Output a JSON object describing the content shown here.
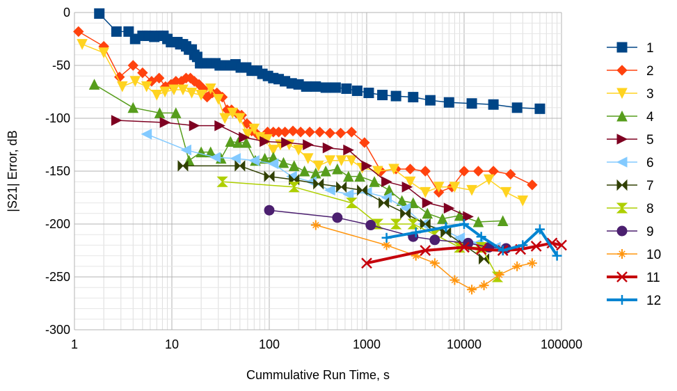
{
  "chart_data": {
    "type": "scatter",
    "title": "",
    "xlabel": "Cummulative Run Time, s",
    "ylabel": "|S21| Error, dB",
    "xscale": "log",
    "xlim": [
      1,
      100000
    ],
    "ylim": [
      -300,
      0
    ],
    "x_ticks": [
      1,
      10,
      100,
      1000,
      10000,
      100000
    ],
    "x_tick_labels": [
      "1",
      "10",
      "100",
      "1000",
      "10000",
      "100000"
    ],
    "y_ticks": [
      0,
      -50,
      -100,
      -150,
      -200,
      -250,
      -300
    ],
    "y_tick_labels": [
      "0",
      "-50",
      "-100",
      "-150",
      "-200",
      "-250",
      "-300"
    ],
    "grid": true,
    "legend_position": "right",
    "series": [
      {
        "name": "1",
        "color": "#004586",
        "marker": "square",
        "line_width": 1.5,
        "x": [
          1.8,
          2.7,
          3.6,
          4.2,
          5.0,
          5.8,
          6.6,
          7.4,
          8.2,
          9.0,
          9.8,
          10.6,
          11.4,
          12.2,
          13.0,
          14.0,
          15.0,
          16.0,
          17.0,
          18.2,
          19.5,
          21,
          23,
          25,
          28,
          31,
          35,
          40,
          45,
          51,
          58,
          66,
          75,
          85,
          97,
          110,
          125,
          145,
          170,
          200,
          240,
          300,
          380,
          480,
          620,
          800,
          1050,
          1450,
          2000,
          3000,
          4500,
          7000,
          12000,
          20000,
          35000,
          60000
        ],
        "y": [
          -1,
          -18,
          -18,
          -25,
          -22,
          -22,
          -23,
          -22,
          -22,
          -25,
          -28,
          -28,
          -28,
          -30,
          -30,
          -32,
          -35,
          -35,
          -40,
          -42,
          -48,
          -48,
          -48,
          -48,
          -48,
          -50,
          -50,
          -50,
          -49,
          -52,
          -52,
          -55,
          -55,
          -58,
          -60,
          -62,
          -63,
          -65,
          -67,
          -68,
          -70,
          -70,
          -71,
          -71,
          -72,
          -74,
          -76,
          -78,
          -79,
          -80,
          -83,
          -85,
          -86,
          -87,
          -90,
          -91
        ]
      },
      {
        "name": "2",
        "color": "#ff420e",
        "marker": "diamond",
        "line_width": 1.5,
        "x": [
          1.1,
          2.0,
          2.9,
          4.0,
          5.0,
          6.2,
          7.4,
          8.6,
          9.8,
          11,
          12.5,
          14,
          15.5,
          17,
          19,
          21,
          23,
          26,
          29,
          33,
          37,
          41,
          46,
          52,
          59,
          66,
          75,
          85,
          96,
          110,
          125,
          145,
          175,
          210,
          260,
          330,
          420,
          540,
          700,
          950,
          1400,
          2000,
          2800,
          4000,
          5500,
          7500,
          10000,
          14000,
          20000,
          30000,
          50000
        ],
        "y": [
          -18,
          -32,
          -61,
          -50,
          -57,
          -65,
          -62,
          -70,
          -68,
          -65,
          -65,
          -62,
          -62,
          -65,
          -68,
          -72,
          -80,
          -76,
          -76,
          -80,
          -92,
          -92,
          -95,
          -97,
          -105,
          -112,
          -115,
          -118,
          -113,
          -113,
          -113,
          -113,
          -112,
          -113,
          -113,
          -113,
          -114,
          -114,
          -113,
          -123,
          -150,
          -148,
          -148,
          -150,
          -170,
          -165,
          -150,
          -150,
          -150,
          -153,
          -163
        ]
      },
      {
        "name": "3",
        "color": "#ffd320",
        "marker": "triangle-down",
        "line_width": 1.5,
        "x": [
          1.2,
          2.0,
          3.1,
          4.2,
          5.5,
          7.0,
          8.5,
          10.5,
          13,
          16,
          20,
          25,
          30,
          35,
          42,
          50,
          60,
          70,
          80,
          95,
          110,
          130,
          160,
          200,
          250,
          320,
          420,
          550,
          700,
          900,
          1300,
          1900,
          2800,
          4000,
          5500,
          8000,
          12000,
          18000,
          27000,
          40000
        ],
        "y": [
          -30,
          -38,
          -70,
          -65,
          -70,
          -78,
          -75,
          -73,
          -73,
          -76,
          -78,
          -72,
          -82,
          -100,
          -95,
          -100,
          -115,
          -110,
          -118,
          -120,
          -130,
          -125,
          -125,
          -130,
          -138,
          -145,
          -140,
          -140,
          -140,
          -147,
          -150,
          -148,
          -160,
          -170,
          -165,
          -165,
          -168,
          -158,
          -170,
          -178
        ]
      },
      {
        "name": "4",
        "color": "#579d1c",
        "marker": "triangle-up",
        "line_width": 1.5,
        "x": [
          1.6,
          4.0,
          7.5,
          11,
          15,
          20,
          25,
          32,
          40,
          48,
          58,
          72,
          90,
          110,
          140,
          180,
          230,
          300,
          380,
          500,
          650,
          850,
          1200,
          1700,
          2300,
          3000,
          4200,
          6000,
          9000,
          14000,
          25000
        ],
        "y": [
          -68,
          -90,
          -95,
          -95,
          -140,
          -132,
          -132,
          -138,
          -122,
          -123,
          -123,
          -140,
          -138,
          -137,
          -142,
          -145,
          -150,
          -152,
          -150,
          -148,
          -155,
          -155,
          -160,
          -168,
          -178,
          -180,
          -190,
          -195,
          -192,
          -198,
          -197
        ]
      },
      {
        "name": "5",
        "color": "#7e0021",
        "marker": "triangle-right",
        "line_width": 1.5,
        "x": [
          2.7,
          8.5,
          17,
          31,
          55,
          90,
          150,
          250,
          400,
          650,
          1000,
          1600,
          2600,
          4200,
          7000,
          11000
        ],
        "y": [
          -102,
          -104,
          -107,
          -107,
          -118,
          -122,
          -123,
          -125,
          -128,
          -130,
          -145,
          -160,
          -165,
          -180,
          -185,
          -193
        ]
      },
      {
        "name": "6",
        "color": "#83caff",
        "marker": "triangle-left",
        "line_width": 1.5,
        "x": [
          5.5,
          14,
          28,
          45,
          70,
          110,
          170,
          270,
          420,
          650,
          1000,
          1600,
          2500,
          3800,
          6000,
          9000,
          14000,
          21000
        ],
        "y": [
          -115,
          -130,
          -137,
          -138,
          -140,
          -143,
          -155,
          -160,
          -168,
          -172,
          -170,
          -175,
          -185,
          -200,
          -205,
          -213,
          -218,
          -222
        ]
      },
      {
        "name": "7",
        "color": "#314004",
        "marker": "bowtie",
        "line_width": 1.5,
        "x": [
          13,
          50,
          100,
          180,
          320,
          550,
          900,
          1500,
          2500,
          4000,
          6500,
          10000,
          16000
        ],
        "y": [
          -145,
          -145,
          -155,
          -158,
          -162,
          -165,
          -168,
          -180,
          -190,
          -200,
          -208,
          -220,
          -233
        ]
      },
      {
        "name": "8",
        "color": "#aecf00",
        "marker": "hourglass",
        "line_width": 1.5,
        "x": [
          33,
          180,
          700,
          1300,
          2000,
          3000,
          5000,
          9000,
          15000,
          22000
        ],
        "y": [
          -160,
          -165,
          -180,
          -200,
          -200,
          -200,
          -210,
          -222,
          -222,
          -250
        ]
      },
      {
        "name": "9",
        "color": "#4b1f6f",
        "marker": "circle",
        "line_width": 1.5,
        "x": [
          100,
          500,
          1100,
          3000,
          5000,
          11000,
          18000,
          27000
        ],
        "y": [
          -187,
          -194,
          -201,
          -212,
          -215,
          -218,
          -222,
          -223
        ]
      },
      {
        "name": "10",
        "color": "#ff950e",
        "marker": "star",
        "line_width": 1.5,
        "x": [
          300,
          1600,
          3200,
          5000,
          8000,
          12000,
          16000,
          23000,
          35000,
          50000
        ],
        "y": [
          -201,
          -220,
          -230,
          -237,
          -253,
          -262,
          -258,
          -248,
          -240,
          -237
        ]
      },
      {
        "name": "11",
        "color": "#c5000b",
        "marker": "x",
        "line_width": 4,
        "x": [
          1000,
          4000,
          10000,
          15000,
          25000,
          38000,
          55000,
          80000,
          100000
        ],
        "y": [
          -237,
          -225,
          -222,
          -224,
          -225,
          -224,
          -221,
          -218,
          -220
        ]
      },
      {
        "name": "12",
        "color": "#0084d1",
        "marker": "plus",
        "line_width": 4,
        "x": [
          1600,
          3200,
          6500,
          10000,
          15000,
          25000,
          40000,
          60000,
          90000
        ],
        "y": [
          -213,
          -208,
          -203,
          -200,
          -212,
          -225,
          -220,
          -205,
          -230
        ]
      }
    ]
  }
}
